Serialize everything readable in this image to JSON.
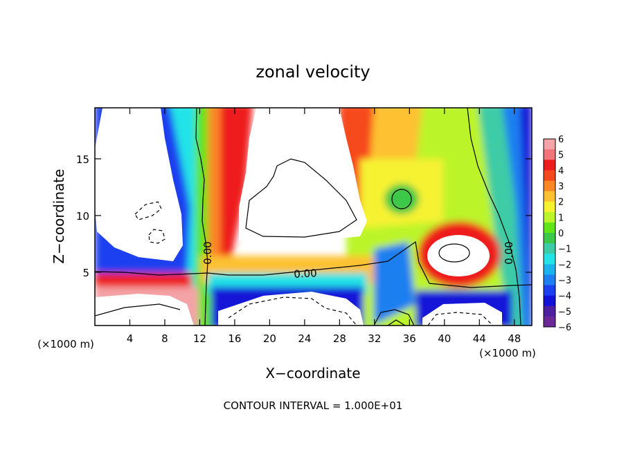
{
  "chart_data": {
    "type": "heatmap",
    "title": "zonal velocity",
    "xlabel": "X−coordinate",
    "ylabel": "Z−coordinate",
    "x_unit": "(×1000 m)",
    "xlim": [
      0,
      50
    ],
    "ylim": [
      0.3,
      19.5
    ],
    "x_ticks": [
      "4",
      "8",
      "12",
      "16",
      "20",
      "24",
      "28",
      "32",
      "36",
      "40",
      "44",
      "48"
    ],
    "y_ticks": [
      "5",
      "10",
      "15"
    ],
    "colorbar": {
      "ticks": [
        "6",
        "5",
        "4",
        "3",
        "2",
        "1",
        "0",
        "−1",
        "−2",
        "−3",
        "−4",
        "−5",
        "−6"
      ],
      "range": [
        -6,
        6
      ],
      "colors": [
        "#f4a3a6",
        "#f17478",
        "#ee1d1d",
        "#f6481f",
        "#fb8726",
        "#fdc131",
        "#f6f232",
        "#bcf42a",
        "#61e41a",
        "#3cc84a",
        "#3ecca6",
        "#23e3e7",
        "#1bb3ec",
        "#1f7ff0",
        "#1c3ff0",
        "#1212d8",
        "#4e1f9e",
        "#6d2898"
      ]
    },
    "contour_labels": [
      "0.00",
      "0.00",
      "0.00"
    ],
    "footer": "CONTOUR INTERVAL = 1.000E+01"
  }
}
